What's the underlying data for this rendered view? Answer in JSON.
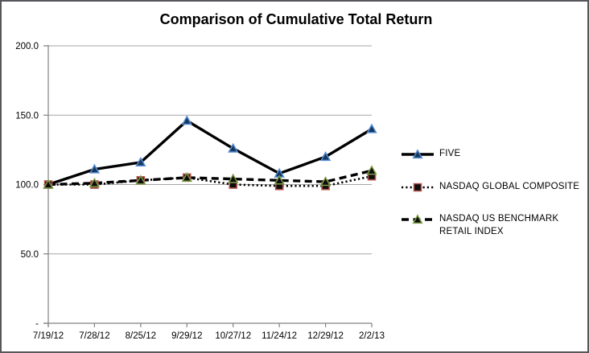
{
  "chart_data": {
    "type": "line",
    "title": "Comparison of Cumulative Total Return",
    "categories": [
      "7/19/12",
      "7/28/12",
      "8/25/12",
      "9/29/12",
      "10/27/12",
      "11/24/12",
      "12/29/12",
      "2/2/13"
    ],
    "y_ticks": [
      {
        "value": 200,
        "label": "200.0"
      },
      {
        "value": 150,
        "label": "150.0"
      },
      {
        "value": 100,
        "label": "100.0"
      },
      {
        "value": 50,
        "label": "50.0"
      },
      {
        "value": 0,
        "label": "-"
      }
    ],
    "ylim": [
      0,
      200
    ],
    "grid": "horizontal",
    "legend_position": "right",
    "series": [
      {
        "name": "FIVE",
        "values": [
          100,
          111,
          116,
          146,
          126,
          108,
          120,
          140
        ],
        "line_style": "solid",
        "line_color": "#000000",
        "marker": "triangle",
        "marker_fill": "#17375E",
        "marker_outline": "#558ED5"
      },
      {
        "name": "NASDAQ GLOBAL COMPOSITE",
        "values": [
          100,
          100,
          103,
          105,
          100,
          99,
          99,
          106
        ],
        "line_style": "dotted",
        "line_color": "#000000",
        "marker": "square",
        "marker_fill": "#0D0D0D",
        "marker_outline": "#B2534E"
      },
      {
        "name": "NASDAQ US BENCHMARK RETAIL INDEX",
        "values": [
          100,
          101,
          103,
          105,
          104,
          103,
          102,
          110
        ],
        "line_style": "dashed",
        "line_color": "#000000",
        "marker": "triangle",
        "marker_fill": "#0D0D0D",
        "marker_outline": "#7E9B44"
      }
    ],
    "axis_color": "#808080",
    "gridline_color": "#A6A6A6",
    "tick_label_color": "#000000"
  }
}
